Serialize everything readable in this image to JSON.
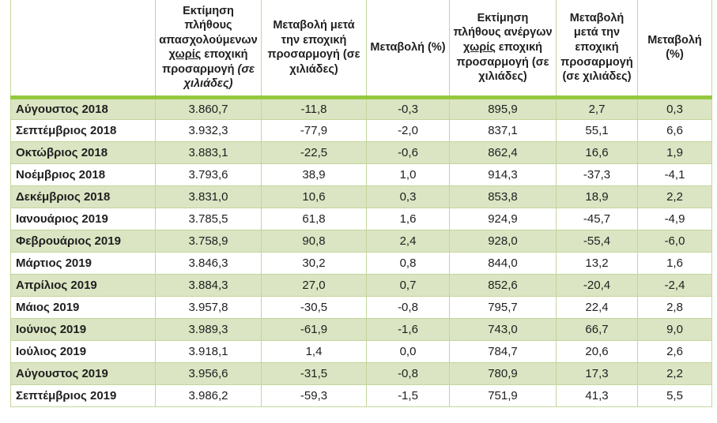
{
  "meta": {
    "description": "Monthly employment and unemployment estimates table (Greek)",
    "language": "el"
  },
  "colors": {
    "grid_border": "#c3d69b",
    "header_separator_bar": "#95c83f",
    "alt_row_green": "#dbe5c3",
    "text": "#1f1f1f",
    "background": "#ffffff"
  },
  "table": {
    "headers": [
      {
        "segments": []
      },
      {
        "segments": [
          {
            "t": "Εκτίμηση πλήθους απασχολούμενων "
          },
          {
            "t": "χωρίς",
            "u": true
          },
          {
            "t": " εποχική προσαρμογή "
          },
          {
            "t": "(σε χιλιάδες)",
            "i": true
          }
        ]
      },
      {
        "segments": [
          {
            "t": "Μεταβολή μετά την εποχική προσαρμογή (σε χιλιάδες)"
          }
        ]
      },
      {
        "segments": [
          {
            "t": "Μεταβολή (%)"
          }
        ]
      },
      {
        "segments": [
          {
            "t": "Εκτίμηση πλήθους ανέργων "
          },
          {
            "t": "χωρίς",
            "u": true
          },
          {
            "t": " εποχική προσαρμογή (σε χιλιάδες)"
          }
        ]
      },
      {
        "segments": [
          {
            "t": "Μεταβολή μετά την εποχική προσαρμογή (σε χιλιάδες)"
          }
        ]
      },
      {
        "segments": [
          {
            "t": "Μεταβολή (%)"
          }
        ]
      }
    ],
    "rows": [
      {
        "month": "Αύγουστος 2018",
        "values": [
          "3.860,7",
          "-11,8",
          "-0,3",
          "895,9",
          "2,7",
          "0,3"
        ]
      },
      {
        "month": "Σεπτέμβριος 2018",
        "values": [
          "3.932,3",
          "-77,9",
          "-2,0",
          "837,1",
          "55,1",
          "6,6"
        ]
      },
      {
        "month": "Οκτώβριος 2018",
        "values": [
          "3.883,1",
          "-22,5",
          "-0,6",
          "862,4",
          "16,6",
          "1,9"
        ]
      },
      {
        "month": "Νοέμβριος 2018",
        "values": [
          "3.793,6",
          "38,9",
          "1,0",
          "914,3",
          "-37,3",
          "-4,1"
        ]
      },
      {
        "month": "Δεκέμβριος 2018",
        "values": [
          "3.831,0",
          "10,6",
          "0,3",
          "853,8",
          "18,9",
          "2,2"
        ]
      },
      {
        "month": "Ιανουάριος 2019",
        "values": [
          "3.785,5",
          "61,8",
          "1,6",
          "924,9",
          "-45,7",
          "-4,9"
        ]
      },
      {
        "month": "Φεβρουάριος 2019",
        "values": [
          "3.758,9",
          "90,8",
          "2,4",
          "928,0",
          "-55,4",
          "-6,0"
        ]
      },
      {
        "month": "Μάρτιος 2019",
        "values": [
          "3.846,3",
          "30,2",
          "0,8",
          "844,0",
          "13,2",
          "1,6"
        ]
      },
      {
        "month": "Απρίλιος 2019",
        "values": [
          "3.884,3",
          "27,0",
          "0,7",
          "852,6",
          "-20,4",
          "-2,4"
        ]
      },
      {
        "month": "Μάιος 2019",
        "values": [
          "3.957,8",
          "-30,5",
          "-0,8",
          "795,7",
          "22,4",
          "2,8"
        ]
      },
      {
        "month": "Ιούνιος 2019",
        "values": [
          "3.989,3",
          "-61,9",
          "-1,6",
          "743,0",
          "66,7",
          "9,0"
        ]
      },
      {
        "month": "Ιούλιος 2019",
        "values": [
          "3.918,1",
          "1,4",
          "0,0",
          "784,7",
          "20,6",
          "2,6"
        ]
      },
      {
        "month": "Αύγουστος 2019",
        "values": [
          "3.956,6",
          "-31,5",
          "-0,8",
          "780,9",
          "17,3",
          "2,2"
        ]
      },
      {
        "month": "Σεπτέμβριος 2019",
        "values": [
          "3.986,2",
          "-59,3",
          "-1,5",
          "751,9",
          "41,3",
          "5,5"
        ]
      }
    ]
  }
}
